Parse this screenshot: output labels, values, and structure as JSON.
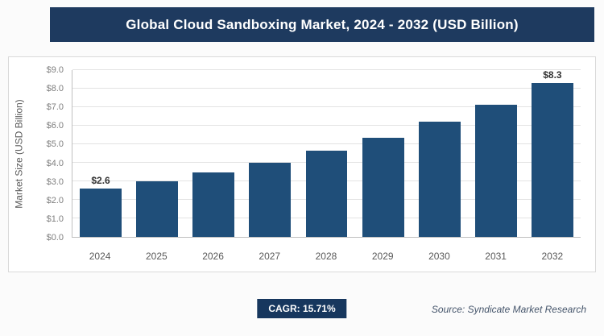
{
  "header": {
    "title": "Global Cloud Sandboxing Market, 2024 - 2032 (USD Billion)"
  },
  "chart_data": {
    "type": "bar",
    "title": "Global Cloud Sandboxing Market, 2024 - 2032 (USD Billion)",
    "categories": [
      "2024",
      "2025",
      "2026",
      "2027",
      "2028",
      "2029",
      "2030",
      "2031",
      "2032"
    ],
    "values": [
      2.6,
      3.0,
      3.5,
      4.0,
      4.65,
      5.35,
      6.2,
      7.15,
      8.3
    ],
    "point_labels": [
      "$2.6",
      "",
      "",
      "",
      "",
      "",
      "",
      "",
      "$8.3"
    ],
    "xlabel": "",
    "ylabel": "Market Size (USD Billion)",
    "ylim": [
      0,
      9
    ],
    "ytick_values": [
      0,
      1,
      2,
      3,
      4,
      5,
      6,
      7,
      8,
      9
    ],
    "ytick_labels": [
      "$0.0",
      "$1.0",
      "$2.0",
      "$3.0",
      "$4.0",
      "$5.0",
      "$6.0",
      "$7.0",
      "$8.0",
      "$9.0"
    ],
    "grid": true,
    "legend": false
  },
  "footer": {
    "cagr_label": "CAGR: 15.71%",
    "source": "Source: Syndicate Market Research"
  },
  "colors": {
    "header_bg": "#1E3A5F",
    "badge_bg": "#17375E",
    "bar": "#1F4E79",
    "panel_border": "#D9D9D9",
    "gridline": "#E3E3E3",
    "axis": "#BFBFBF",
    "tick_text": "#7F7F7F",
    "source_text": "#44546A"
  }
}
